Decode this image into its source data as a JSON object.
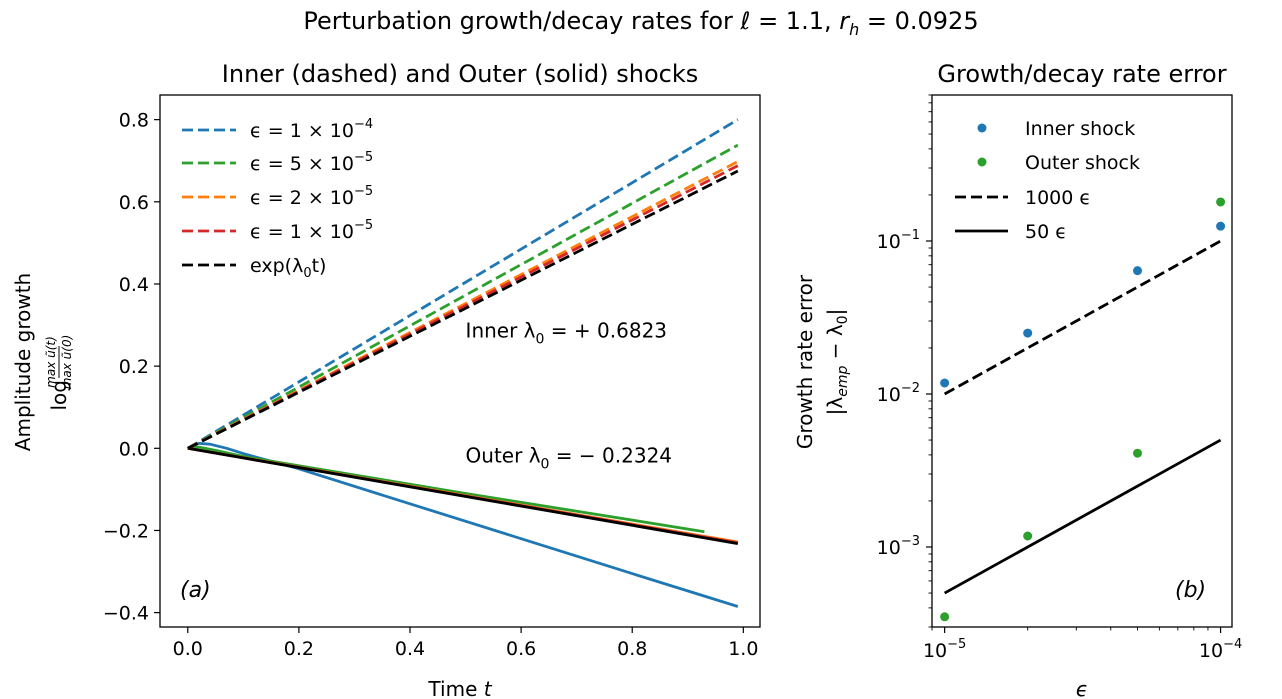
{
  "figure": {
    "title": "Perturbation growth/decay rates for ℓ = 1.1, r_h = 0.0925",
    "title_parts": {
      "prefix": "Perturbation growth/decay rates for ",
      "ell": "ℓ",
      "ell_val": " = 1.1, ",
      "r": "r",
      "r_sub": "h",
      "r_val": " = 0.0925"
    }
  },
  "colors": {
    "blue": "#1f77b4",
    "green": "#2ca02c",
    "orange": "#ff7f0e",
    "red": "#d62728",
    "black": "#000000"
  },
  "chart_data": [
    {
      "type": "line",
      "title": "Inner (dashed) and Outer (solid) shocks",
      "xlabel": "Time t",
      "xlabel_parts": {
        "text": "Time ",
        "var": "t"
      },
      "ylabel_line1": "Amplitude growth",
      "ylabel_line2_prefix": "log",
      "ylabel_frac_num": "max ũ(t)",
      "ylabel_frac_den": "max ũ(0)",
      "xlim": [
        -0.05,
        1.03
      ],
      "ylim": [
        -0.435,
        0.86
      ],
      "xticks": [
        0.0,
        0.2,
        0.4,
        0.6,
        0.8,
        1.0
      ],
      "xtick_labels": [
        "0.0",
        "0.2",
        "0.4",
        "0.6",
        "0.8",
        "1.0"
      ],
      "yticks": [
        -0.4,
        -0.2,
        0.0,
        0.2,
        0.4,
        0.6,
        0.8
      ],
      "ytick_labels": [
        "−0.4",
        "−0.2",
        "0.0",
        "0.2",
        "0.4",
        "0.6",
        "0.8"
      ],
      "legend_position": "top-left",
      "legend": [
        {
          "label_pre": "ϵ = 1 × 10",
          "exp": "−4",
          "color": "blue",
          "style": "dashed"
        },
        {
          "label_pre": "ϵ = 5 × 10",
          "exp": "−5",
          "color": "green",
          "style": "dashed"
        },
        {
          "label_pre": "ϵ = 2 × 10",
          "exp": "−5",
          "color": "orange",
          "style": "dashed"
        },
        {
          "label_pre": "ϵ = 1 × 10",
          "exp": "−5",
          "color": "red",
          "style": "dashed"
        },
        {
          "label_pre": "exp(λ",
          "sub": "0",
          "label_post": "t)",
          "color": "black",
          "style": "dashed"
        }
      ],
      "annotations": [
        {
          "text_pre": "Inner λ",
          "sub": "0",
          "text_post": " = + 0.6823",
          "x": 0.5,
          "y": 0.27
        },
        {
          "text_pre": "Outer λ",
          "sub": "0",
          "text_post": " = − 0.2324",
          "x": 0.5,
          "y": -0.035
        }
      ],
      "panel_label": "(a)",
      "series": [
        {
          "name": "ϵ = 1 × 10⁻⁴",
          "color": "blue",
          "style": "dashed",
          "x": [
            0.0,
            0.99
          ],
          "y": [
            0.0,
            0.8
          ]
        },
        {
          "name": "ϵ = 5 × 10⁻⁵",
          "color": "green",
          "style": "dashed",
          "x": [
            0.0,
            0.99
          ],
          "y": [
            0.0,
            0.738
          ]
        },
        {
          "name": "ϵ = 2 × 10⁻⁵",
          "color": "orange",
          "style": "dashed",
          "x": [
            0.0,
            0.99
          ],
          "y": [
            0.0,
            0.698
          ]
        },
        {
          "name": "ϵ = 1 × 10⁻⁵",
          "color": "red",
          "style": "dashed",
          "x": [
            0.0,
            0.99
          ],
          "y": [
            0.0,
            0.688
          ]
        },
        {
          "name": "exp(λ₀t)",
          "color": "black",
          "style": "dashed",
          "x": [
            0.0,
            0.99
          ],
          "y": [
            0.0,
            0.675
          ]
        },
        {
          "color": "blue",
          "style": "solid",
          "x": [
            0.0,
            0.02,
            0.04,
            0.07,
            0.1,
            0.2,
            0.4,
            0.6,
            0.8,
            0.99
          ],
          "y": [
            0.0,
            0.012,
            0.01,
            0.0,
            -0.013,
            -0.05,
            -0.135,
            -0.22,
            -0.305,
            -0.385
          ]
        },
        {
          "color": "green",
          "style": "solid",
          "x": [
            0.0,
            0.02,
            0.05,
            0.1,
            0.3,
            0.5,
            0.7,
            0.93
          ],
          "y": [
            0.0,
            0.003,
            -0.005,
            -0.02,
            -0.065,
            -0.11,
            -0.153,
            -0.203
          ]
        },
        {
          "color": "orange",
          "style": "solid",
          "x": [
            0.0,
            0.99
          ],
          "y": [
            0.0,
            -0.228
          ]
        },
        {
          "color": "red",
          "style": "solid",
          "x": [
            0.0,
            0.99
          ],
          "y": [
            0.0,
            -0.23
          ]
        },
        {
          "color": "black",
          "style": "solid",
          "x": [
            0.0,
            0.99
          ],
          "y": [
            0.0,
            -0.232
          ]
        }
      ]
    },
    {
      "type": "scatter",
      "title": "Growth/decay rate error",
      "xlabel": "ϵ",
      "ylabel_line1": "Growth rate error",
      "ylabel_line2": "|λ_emp − λ_0|",
      "ylabel_parts": {
        "pre": "|λ",
        "sub1": "emp",
        "mid": " − λ",
        "sub2": "0",
        "post": "|"
      },
      "xscale": "log",
      "yscale": "log",
      "xlim": [
        9e-06,
        0.00011
      ],
      "ylim": [
        0.0003,
        0.9
      ],
      "xticks": [
        1e-05,
        0.0001
      ],
      "xtick_labels": [
        {
          "base": "10",
          "exp": "−5"
        },
        {
          "base": "10",
          "exp": "−4"
        }
      ],
      "yticks": [
        0.001,
        0.01,
        0.1
      ],
      "ytick_labels": [
        {
          "base": "10",
          "exp": "−3"
        },
        {
          "base": "10",
          "exp": "−2"
        },
        {
          "base": "10",
          "exp": "−1"
        }
      ],
      "legend_position": "top-left",
      "legend": [
        {
          "label": "Inner shock",
          "color": "blue",
          "style": "marker"
        },
        {
          "label": "Outer shock",
          "color": "green",
          "style": "marker"
        },
        {
          "label": "1000 ϵ",
          "color": "black",
          "style": "dashed"
        },
        {
          "label": "50 ϵ",
          "color": "black",
          "style": "solid"
        }
      ],
      "panel_label": "(b)",
      "series": [
        {
          "name": "Inner shock",
          "color": "blue",
          "kind": "scatter",
          "x": [
            1e-05,
            2e-05,
            5e-05,
            0.0001
          ],
          "y": [
            0.0118,
            0.025,
            0.064,
            0.125
          ]
        },
        {
          "name": "Outer shock",
          "color": "green",
          "kind": "scatter",
          "x": [
            1e-05,
            2e-05,
            5e-05,
            0.0001
          ],
          "y": [
            0.00035,
            0.00118,
            0.0041,
            0.18
          ]
        },
        {
          "name": "1000 ϵ",
          "color": "black",
          "kind": "dashed",
          "x": [
            1e-05,
            0.0001
          ],
          "y": [
            0.01,
            0.1
          ]
        },
        {
          "name": "50 ϵ",
          "color": "black",
          "kind": "solid",
          "x": [
            1e-05,
            0.0001
          ],
          "y": [
            0.0005,
            0.005
          ]
        }
      ]
    }
  ]
}
